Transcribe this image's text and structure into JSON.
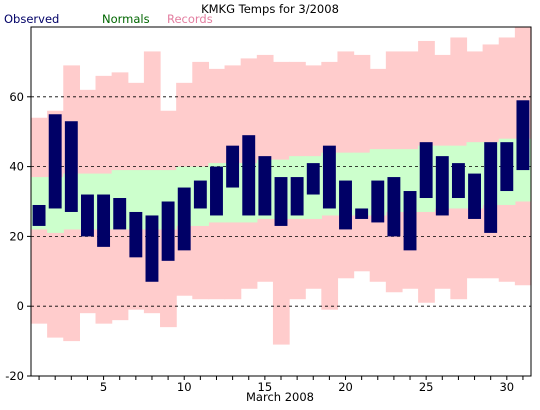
{
  "chart_data": {
    "type": "bar",
    "title": "KMKG Temps for 3/2008",
    "xlabel": "March 2008",
    "ylabel": "",
    "ylim": [
      -20,
      80
    ],
    "yticks": [
      -20,
      0,
      20,
      40,
      60
    ],
    "xtick_labels": [
      "5",
      "10",
      "15",
      "20",
      "25",
      "30"
    ],
    "xtick_days": [
      5,
      10,
      15,
      20,
      25,
      30
    ],
    "days": [
      1,
      2,
      3,
      4,
      5,
      6,
      7,
      8,
      9,
      10,
      11,
      12,
      13,
      14,
      15,
      16,
      17,
      18,
      19,
      20,
      21,
      22,
      23,
      24,
      25,
      26,
      27,
      28,
      29,
      30,
      31
    ],
    "grid": "dashed horizontal at 0, 20, 40, 60",
    "legend": [
      {
        "name": "Observed",
        "color": "#000066"
      },
      {
        "name": "Normals",
        "color": "#006600"
      },
      {
        "name": "Records",
        "color": "#e37ea0"
      }
    ],
    "series": [
      {
        "name": "Records",
        "low": [
          -5,
          -9,
          -10,
          -2,
          -5,
          -4,
          -1,
          -2,
          -6,
          3,
          2,
          2,
          2,
          5,
          7,
          -11,
          2,
          5,
          -1,
          8,
          10,
          7,
          4,
          5,
          1,
          5,
          2,
          8,
          8,
          7,
          6
        ],
        "high": [
          54,
          56,
          69,
          62,
          66,
          67,
          64,
          73,
          56,
          64,
          70,
          68,
          69,
          71,
          72,
          70,
          70,
          69,
          70,
          73,
          72,
          68,
          73,
          73,
          76,
          72,
          77,
          73,
          75,
          77,
          80
        ]
      },
      {
        "name": "Normals",
        "low": [
          22,
          21,
          22,
          22,
          22,
          22,
          22,
          22,
          22,
          23,
          23,
          24,
          24,
          24,
          25,
          25,
          25,
          25,
          26,
          26,
          26,
          26,
          27,
          27,
          27,
          28,
          28,
          28,
          29,
          29,
          30
        ],
        "high": [
          37,
          37,
          38,
          38,
          38,
          39,
          39,
          39,
          39,
          40,
          40,
          41,
          41,
          41,
          42,
          42,
          43,
          43,
          44,
          44,
          44,
          45,
          45,
          45,
          46,
          46,
          46,
          47,
          47,
          48,
          48
        ]
      },
      {
        "name": "Observed",
        "low": [
          23,
          28,
          27,
          20,
          17,
          22,
          14,
          7,
          13,
          16,
          28,
          26,
          34,
          26,
          26,
          23,
          26,
          32,
          28,
          22,
          25,
          24,
          20,
          16,
          31,
          26,
          31,
          25,
          21,
          33,
          39
        ],
        "high": [
          29,
          55,
          53,
          32,
          32,
          31,
          27,
          26,
          30,
          34,
          36,
          40,
          46,
          49,
          43,
          37,
          37,
          41,
          46,
          36,
          28,
          36,
          37,
          33,
          47,
          43,
          41,
          38,
          47,
          47,
          59
        ]
      }
    ]
  }
}
